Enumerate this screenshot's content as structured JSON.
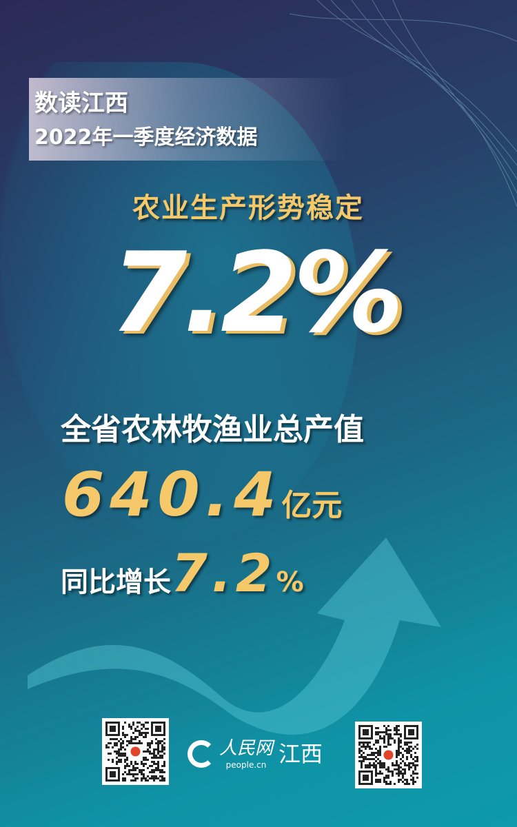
{
  "header": {
    "title": "数读江西",
    "subtitle": "2022年一季度经济数据"
  },
  "headline": "农业生产形势稳定",
  "big_value": "7.2%",
  "metric": {
    "label": "全省农林牧渔业总产值",
    "value": "640.4",
    "unit": "亿元",
    "yoy_label": "同比增长",
    "yoy_value": "7.2",
    "yoy_unit": "%"
  },
  "footer": {
    "logo_cn": "人民网",
    "logo_en": "people.cn",
    "logo_region": "江西",
    "qr_left": "qr-code",
    "qr_right": "qr-code"
  },
  "colors": {
    "accent_gold": "#f5c96a",
    "bg_top": "#2b2a56",
    "bg_bottom": "#0d9aab"
  }
}
